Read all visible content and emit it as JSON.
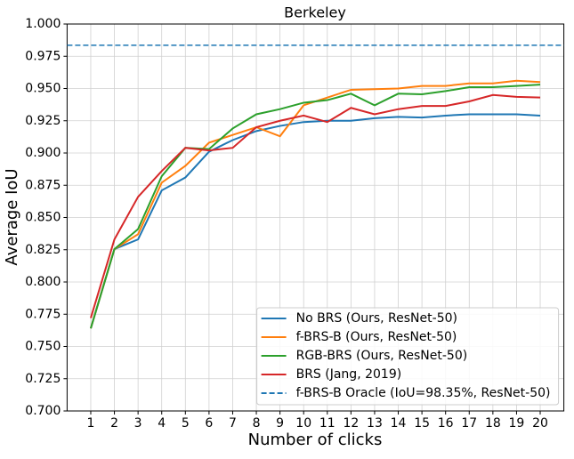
{
  "chart_data": {
    "type": "line",
    "title": "Berkeley",
    "xlabel": "Number of clicks",
    "ylabel": "Average IoU",
    "x": [
      1,
      2,
      3,
      4,
      5,
      6,
      7,
      8,
      9,
      10,
      11,
      12,
      13,
      14,
      15,
      16,
      17,
      18,
      19,
      20
    ],
    "series": [
      {
        "name": "No BRS (Ours, ResNet-50)",
        "color": "#1f77b4",
        "values": [
          0.764,
          0.8255,
          0.833,
          0.871,
          0.881,
          0.901,
          0.91,
          0.917,
          0.921,
          0.924,
          0.925,
          0.925,
          0.927,
          0.928,
          0.9275,
          0.929,
          0.93,
          0.93,
          0.93,
          0.929
        ]
      },
      {
        "name": "f-BRS-B (Ours, ResNet-50)",
        "color": "#ff7f0e",
        "values": [
          0.764,
          0.8255,
          0.837,
          0.877,
          0.89,
          0.908,
          0.914,
          0.92,
          0.913,
          0.937,
          0.943,
          0.949,
          0.9495,
          0.95,
          0.952,
          0.952,
          0.954,
          0.954,
          0.956,
          0.955
        ]
      },
      {
        "name": "RGB-BRS (Ours, ResNet-50)",
        "color": "#2ca02c",
        "values": [
          0.764,
          0.8255,
          0.841,
          0.882,
          0.904,
          0.903,
          0.919,
          0.93,
          0.934,
          0.939,
          0.941,
          0.946,
          0.937,
          0.946,
          0.9455,
          0.948,
          0.951,
          0.951,
          0.952,
          0.953
        ]
      },
      {
        "name": "BRS (Jang, 2019)",
        "color": "#d62728",
        "values": [
          0.772,
          0.833,
          0.866,
          0.886,
          0.904,
          0.902,
          0.904,
          0.92,
          0.925,
          0.929,
          0.924,
          0.935,
          0.93,
          0.934,
          0.9365,
          0.9365,
          0.94,
          0.945,
          0.9435,
          0.943
        ]
      }
    ],
    "hlines": [
      {
        "name": "f-BRS-B Oracle (IoU=98.35%, ResNet-50)",
        "color": "#1f77b4",
        "value": 0.9835,
        "linestyle": "dashed"
      }
    ],
    "xlim": [
      0,
      21
    ],
    "xticks": [
      1,
      2,
      3,
      4,
      5,
      6,
      7,
      8,
      9,
      10,
      11,
      12,
      13,
      14,
      15,
      16,
      17,
      18,
      19,
      20
    ],
    "ylim": [
      0.7,
      1.0
    ],
    "yticks": [
      {
        "value": 0.7,
        "label": "0.700"
      },
      {
        "value": 0.725,
        "label": "0.725"
      },
      {
        "value": 0.75,
        "label": "0.750"
      },
      {
        "value": 0.775,
        "label": "0.775"
      },
      {
        "value": 0.8,
        "label": "0.800"
      },
      {
        "value": 0.825,
        "label": "0.825"
      },
      {
        "value": 0.85,
        "label": "0.850"
      },
      {
        "value": 0.875,
        "label": "0.875"
      },
      {
        "value": 0.9,
        "label": "0.900"
      },
      {
        "value": 0.925,
        "label": "0.925"
      },
      {
        "value": 0.95,
        "label": "0.950"
      },
      {
        "value": 0.975,
        "label": "0.975"
      },
      {
        "value": 1.0,
        "label": "1.000"
      }
    ],
    "grid": true,
    "legend": "lower right"
  }
}
